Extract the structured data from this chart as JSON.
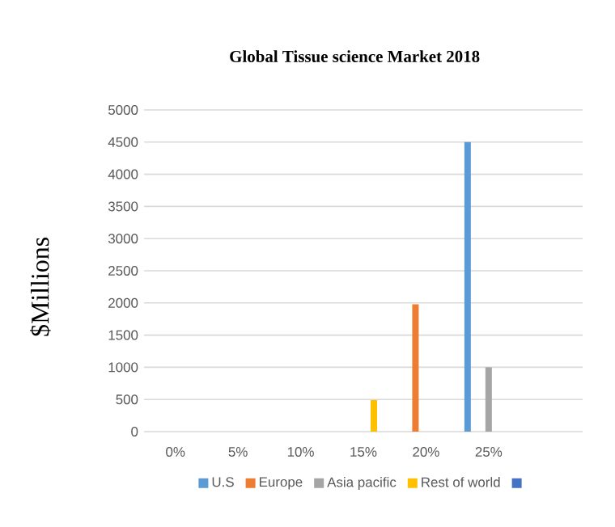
{
  "chart_data": {
    "type": "bar",
    "title": "Global Tissue science Market 2018",
    "ylabel": "$Millions",
    "categories": [
      "0%",
      "5%",
      "10%",
      "15%",
      "20%",
      "25%",
      null
    ],
    "series": [
      {
        "name": "U.S",
        "color": "#5b9bd5",
        "values": [
          null,
          null,
          null,
          null,
          null,
          4500,
          null
        ]
      },
      {
        "name": "Europe",
        "color": "#ed7d31",
        "values": [
          null,
          null,
          null,
          null,
          1980,
          null,
          null
        ]
      },
      {
        "name": "Asia pacific",
        "color": "#a5a5a5",
        "values": [
          null,
          null,
          null,
          null,
          null,
          1000,
          null
        ]
      },
      {
        "name": "Rest of world",
        "color": "#ffc000",
        "values": [
          null,
          null,
          null,
          490,
          null,
          null,
          null
        ]
      },
      {
        "color": "#4472c4",
        "values": [
          null,
          null,
          null,
          null,
          null,
          null,
          null
        ]
      }
    ],
    "ylim": [
      0,
      5000
    ],
    "yticks": [
      0,
      500,
      1000,
      1500,
      2000,
      2500,
      3000,
      3500,
      4000,
      4500,
      5000
    ],
    "grid": "y",
    "legend": "bottom"
  }
}
